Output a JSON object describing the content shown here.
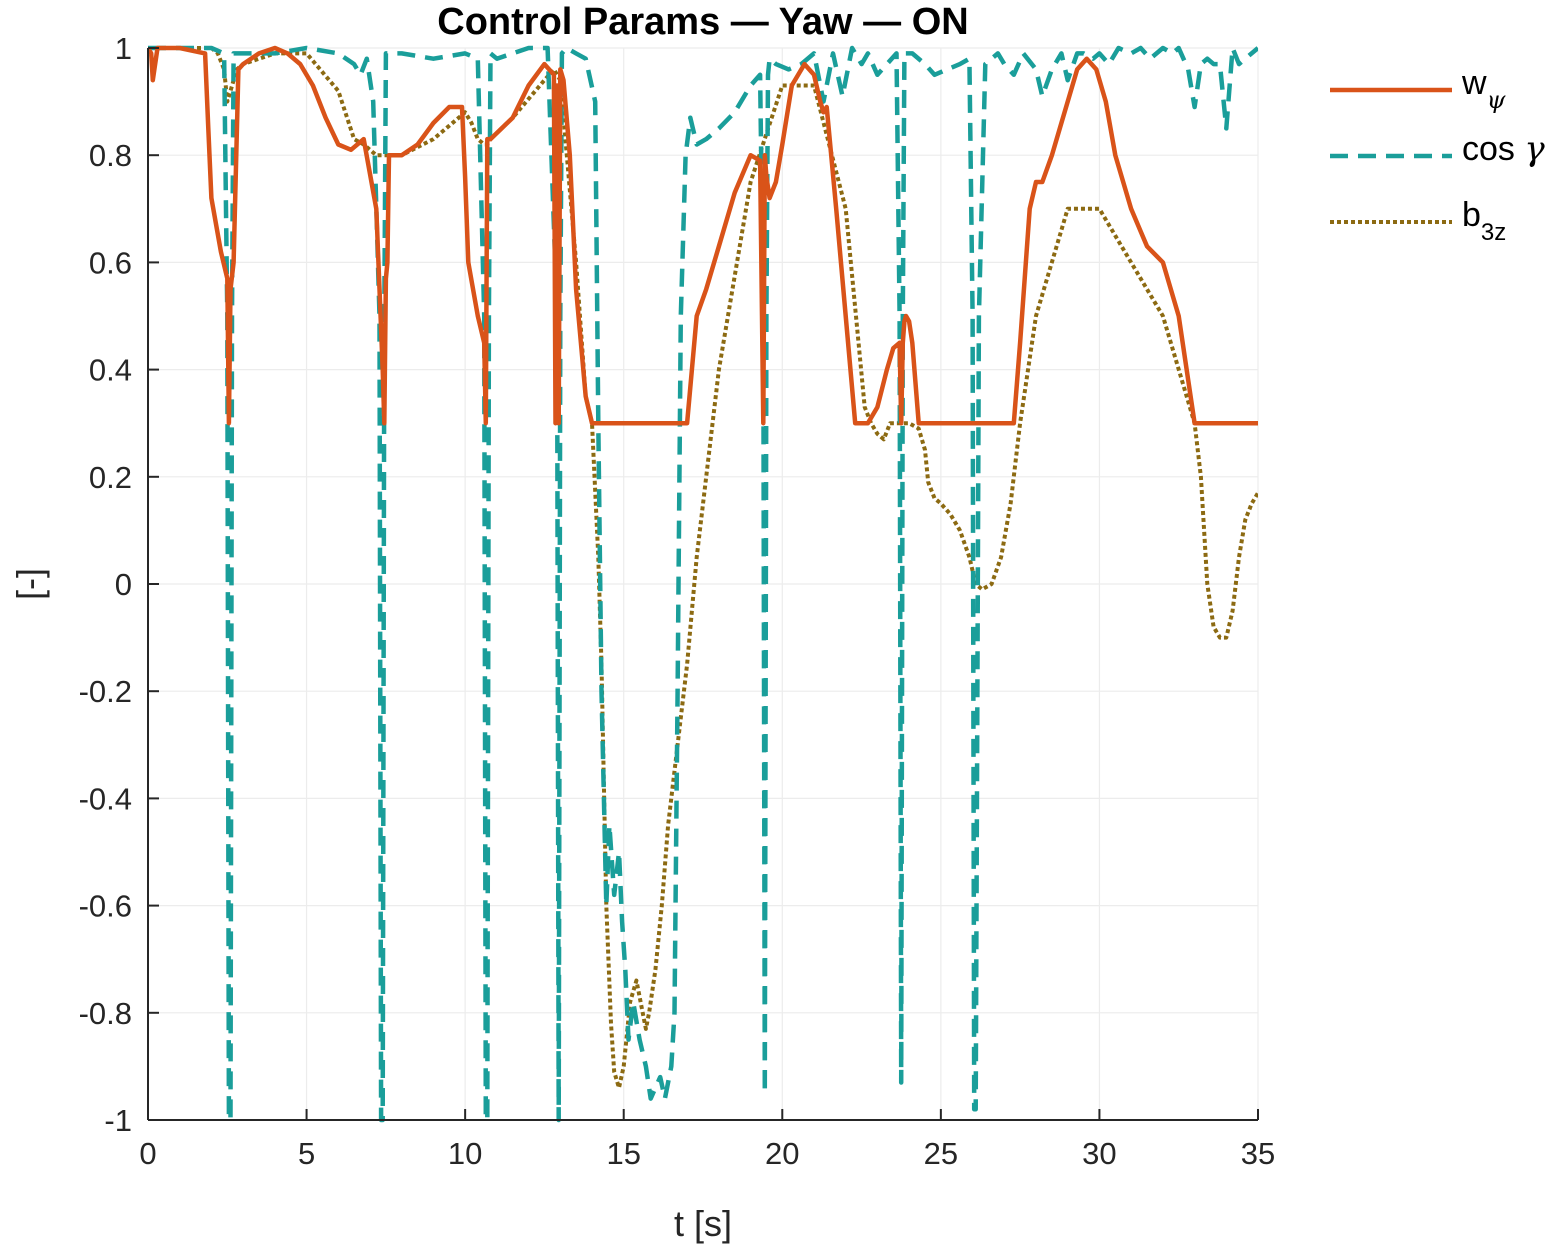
{
  "chart_data": {
    "type": "line",
    "title": "Control Params — Yaw — ON",
    "xlabel": "t [s]",
    "ylabel": "[-]",
    "xlim": [
      0,
      35
    ],
    "ylim": [
      -1,
      1
    ],
    "xticks": [
      0,
      5,
      10,
      15,
      20,
      25,
      30,
      35
    ],
    "xtick_labels": [
      "0",
      "5",
      "10",
      "15",
      "20",
      "25",
      "30",
      "35"
    ],
    "yticks": [
      -1,
      -0.8,
      -0.6,
      -0.4,
      -0.2,
      0,
      0.2,
      0.4,
      0.6,
      0.8,
      1
    ],
    "ytick_labels": [
      "-1",
      "-0.8",
      "-0.6",
      "-0.4",
      "-0.2",
      "0",
      "0.2",
      "0.4",
      "0.6",
      "0.8",
      "1"
    ],
    "grid": true,
    "legend_position": "outside-top-right",
    "series": [
      {
        "name": "w_ψ",
        "legend": {
          "base": "w",
          "sub": "ψ"
        },
        "color": "#D95319",
        "style": "solid",
        "x": [
          0,
          0.1,
          0.15,
          0.3,
          1.0,
          1.8,
          1.9,
          2.0,
          2.3,
          2.5,
          2.55,
          2.6,
          2.7,
          2.85,
          3.0,
          3.5,
          4.0,
          4.4,
          4.8,
          5.2,
          5.6,
          6.0,
          6.4,
          6.8,
          7.2,
          7.3,
          7.4,
          7.45,
          7.5,
          7.55,
          7.6,
          7.7,
          7.8,
          8.0,
          8.5,
          9.0,
          9.5,
          9.9,
          10.0,
          10.1,
          10.4,
          10.6,
          10.65,
          10.7,
          10.8,
          11.5,
          12.0,
          12.5,
          12.8,
          12.85,
          12.9,
          12.95,
          13.0,
          13.1,
          13.3,
          13.5,
          13.8,
          14.0,
          15.0,
          16.0,
          17.0,
          17.3,
          17.6,
          18.0,
          18.5,
          19.0,
          19.3,
          19.4,
          19.45,
          19.5,
          19.6,
          19.8,
          20.0,
          20.3,
          20.7,
          21.0,
          21.2,
          21.3,
          21.4,
          21.7,
          22.0,
          22.3,
          22.7,
          23.0,
          23.3,
          23.5,
          23.7,
          23.75,
          23.8,
          23.85,
          23.9,
          24.0,
          24.1,
          24.3,
          24.5,
          25.0,
          26.0,
          27.3,
          27.5,
          27.8,
          28.0,
          28.2,
          28.5,
          29.0,
          29.3,
          29.6,
          29.9,
          30.2,
          30.5,
          31.0,
          31.5,
          32.0,
          32.5,
          33.0,
          33.2,
          34.0,
          35.0
        ],
        "y": [
          1.0,
          0.99,
          0.94,
          1.0,
          1.0,
          0.99,
          0.85,
          0.72,
          0.62,
          0.57,
          0.3,
          0.55,
          0.6,
          0.96,
          0.97,
          0.99,
          1.0,
          0.99,
          0.97,
          0.93,
          0.87,
          0.82,
          0.81,
          0.83,
          0.7,
          0.55,
          0.4,
          0.3,
          0.57,
          0.6,
          0.8,
          0.8,
          0.8,
          0.8,
          0.82,
          0.86,
          0.89,
          0.89,
          0.76,
          0.6,
          0.5,
          0.45,
          0.3,
          0.83,
          0.83,
          0.87,
          0.93,
          0.97,
          0.95,
          0.3,
          0.93,
          0.3,
          0.96,
          0.94,
          0.8,
          0.55,
          0.35,
          0.3,
          0.3,
          0.3,
          0.3,
          0.5,
          0.55,
          0.63,
          0.73,
          0.8,
          0.79,
          0.3,
          0.8,
          0.76,
          0.72,
          0.75,
          0.82,
          0.93,
          0.97,
          0.95,
          0.9,
          0.88,
          0.89,
          0.7,
          0.5,
          0.3,
          0.3,
          0.33,
          0.4,
          0.44,
          0.45,
          0.3,
          0.45,
          0.49,
          0.5,
          0.49,
          0.45,
          0.3,
          0.3,
          0.3,
          0.3,
          0.3,
          0.45,
          0.7,
          0.75,
          0.75,
          0.8,
          0.9,
          0.96,
          0.98,
          0.96,
          0.9,
          0.8,
          0.7,
          0.63,
          0.6,
          0.5,
          0.3,
          0.3,
          0.3,
          0.3
        ]
      },
      {
        "name": "cos γ",
        "legend": {
          "base": "cos ",
          "sym": "γ"
        },
        "color": "#1A9E9A",
        "style": "dashed",
        "x": [
          0,
          1.0,
          2.0,
          2.4,
          2.5,
          2.55,
          2.6,
          2.65,
          2.7,
          3.0,
          4.0,
          5.0,
          6.0,
          6.5,
          6.7,
          6.9,
          7.1,
          7.3,
          7.35,
          7.4,
          7.45,
          7.5,
          8.0,
          9.0,
          10.0,
          10.4,
          10.6,
          10.65,
          10.7,
          10.75,
          10.8,
          11.0,
          12.0,
          12.6,
          12.9,
          12.95,
          13.0,
          13.05,
          13.2,
          13.5,
          13.8,
          14.1,
          14.2,
          14.3,
          14.45,
          14.55,
          14.7,
          14.85,
          14.95,
          15.05,
          15.15,
          15.3,
          15.5,
          15.7,
          15.85,
          16.0,
          16.15,
          16.3,
          16.5,
          16.6,
          16.7,
          16.8,
          16.95,
          17.1,
          17.3,
          17.6,
          18.0,
          18.5,
          19.0,
          19.3,
          19.4,
          19.45,
          19.5,
          19.55,
          19.6,
          19.8,
          20.2,
          20.6,
          21.0,
          21.3,
          21.6,
          21.9,
          22.2,
          22.5,
          22.7,
          23.0,
          23.3,
          23.6,
          23.7,
          23.75,
          23.8,
          23.85,
          23.9,
          24.1,
          24.5,
          24.8,
          25.2,
          25.6,
          25.9,
          26.0,
          26.05,
          26.1,
          26.2,
          26.4,
          26.8,
          27.0,
          27.3,
          27.6,
          28.0,
          28.2,
          28.5,
          28.8,
          29.0,
          29.3,
          29.5,
          29.8,
          30.0,
          30.3,
          30.6,
          31.0,
          31.3,
          31.6,
          32.0,
          32.3,
          32.5,
          32.8,
          33.0,
          33.2,
          33.4,
          33.6,
          33.8,
          34.0,
          34.2,
          34.4,
          34.6,
          35.0
        ],
        "y": [
          1.0,
          1.0,
          1.0,
          0.99,
          0.5,
          -1.0,
          -1.0,
          0.5,
          0.99,
          0.99,
          0.99,
          1.0,
          0.99,
          0.97,
          0.95,
          0.98,
          0.9,
          0.5,
          -1.0,
          -1.0,
          0.5,
          0.99,
          0.99,
          0.98,
          0.99,
          0.98,
          0.5,
          -1.0,
          -1.0,
          0.5,
          0.99,
          0.98,
          1.0,
          1.0,
          0.5,
          -1.0,
          0.5,
          0.99,
          1.0,
          0.99,
          0.98,
          0.9,
          0.3,
          -0.2,
          -0.6,
          -0.45,
          -0.58,
          -0.5,
          -0.63,
          -0.72,
          -0.85,
          -0.78,
          -0.85,
          -0.9,
          -0.96,
          -0.94,
          -0.92,
          -0.96,
          -0.9,
          -0.8,
          -0.2,
          0.5,
          0.8,
          0.87,
          0.82,
          0.83,
          0.85,
          0.88,
          0.93,
          0.95,
          0.5,
          -0.95,
          0.5,
          0.95,
          0.98,
          0.97,
          0.96,
          0.97,
          0.99,
          0.9,
          0.99,
          0.91,
          1.0,
          0.97,
          0.99,
          0.95,
          0.97,
          0.99,
          0.5,
          -0.93,
          0.5,
          0.99,
          0.99,
          0.99,
          0.97,
          0.95,
          0.96,
          0.97,
          0.98,
          0.5,
          -0.98,
          -0.98,
          0.5,
          0.97,
          0.99,
          0.97,
          0.95,
          0.99,
          0.96,
          0.91,
          0.96,
          0.99,
          0.94,
          0.99,
          0.99,
          0.98,
          0.99,
          0.97,
          1.0,
          0.99,
          1.0,
          0.98,
          1.0,
          0.99,
          1.0,
          0.96,
          0.89,
          0.97,
          0.98,
          0.97,
          0.97,
          0.85,
          1.0,
          0.97,
          0.98,
          1.0
        ]
      },
      {
        "name": "b_3z",
        "legend": {
          "base": "b",
          "sub": "3z"
        },
        "color": "#8C6A12",
        "style": "dotted",
        "x": [
          0,
          2.0,
          2.2,
          2.4,
          2.5,
          2.6,
          2.8,
          3.0,
          4.0,
          5.0,
          6.0,
          6.5,
          6.8,
          7.2,
          7.5,
          7.8,
          8.0,
          9.0,
          9.8,
          10.0,
          10.2,
          10.4,
          10.6,
          10.7,
          10.8,
          11.5,
          12.5,
          12.8,
          13.0,
          13.5,
          13.8,
          14.0,
          14.2,
          14.3,
          14.45,
          14.6,
          14.7,
          14.85,
          15.0,
          15.2,
          15.4,
          15.5,
          15.6,
          15.7,
          15.8,
          16.0,
          16.2,
          16.4,
          16.7,
          17.0,
          17.3,
          18.0,
          19.0,
          20.0,
          21.0,
          22.0,
          22.6,
          22.8,
          23.0,
          23.2,
          23.4,
          23.6,
          23.8,
          24.0,
          24.3,
          24.5,
          24.6,
          24.8,
          25.0,
          25.3,
          25.6,
          25.9,
          26.1,
          26.3,
          26.6,
          26.9,
          27.2,
          27.5,
          28.0,
          29.0,
          30.0,
          31.0,
          32.0,
          33.0,
          33.2,
          33.4,
          33.6,
          33.8,
          34.0,
          34.2,
          34.4,
          34.6,
          34.8,
          35.0
        ],
        "y": [
          1.0,
          1.0,
          0.99,
          0.96,
          0.9,
          0.92,
          0.96,
          0.97,
          0.99,
          0.99,
          0.92,
          0.83,
          0.82,
          0.8,
          0.8,
          0.8,
          0.8,
          0.83,
          0.87,
          0.88,
          0.86,
          0.83,
          0.82,
          0.82,
          0.83,
          0.87,
          0.94,
          0.96,
          0.94,
          0.6,
          0.35,
          0.3,
          0.05,
          -0.15,
          -0.6,
          -0.82,
          -0.91,
          -0.94,
          -0.9,
          -0.78,
          -0.74,
          -0.77,
          -0.8,
          -0.83,
          -0.8,
          -0.72,
          -0.6,
          -0.45,
          -0.3,
          -0.15,
          0.05,
          0.4,
          0.75,
          0.93,
          0.93,
          0.7,
          0.33,
          0.3,
          0.28,
          0.27,
          0.3,
          0.3,
          0.3,
          0.3,
          0.29,
          0.25,
          0.19,
          0.16,
          0.15,
          0.13,
          0.1,
          0.05,
          0.0,
          -0.01,
          0.0,
          0.05,
          0.15,
          0.3,
          0.5,
          0.7,
          0.7,
          0.6,
          0.5,
          0.3,
          0.2,
          0.0,
          -0.08,
          -0.1,
          -0.1,
          -0.05,
          0.05,
          0.12,
          0.15,
          0.17
        ]
      }
    ]
  }
}
